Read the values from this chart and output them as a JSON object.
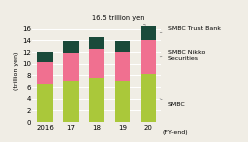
{
  "categories": [
    "2016",
    "17",
    "18",
    "19",
    "20"
  ],
  "smbc": [
    6.5,
    7.0,
    7.5,
    7.0,
    8.3
  ],
  "nikko": [
    3.8,
    4.8,
    5.0,
    5.0,
    5.7
  ],
  "trust": [
    1.7,
    2.0,
    2.0,
    1.8,
    2.5
  ],
  "colors": {
    "smbc": "#aac83a",
    "nikko": "#f07090",
    "trust": "#1a4a3a"
  },
  "bg_color": "#f0ede5",
  "grid_color": "#ffffff",
  "ylabel": "(trillion yen)",
  "xlabel": "(FY-end)",
  "ylim": [
    0,
    17.5
  ],
  "yticks": [
    0,
    2,
    4,
    6,
    8,
    10,
    12,
    14,
    16
  ],
  "annotation_text": "16.5 trillion yen",
  "legend_smbc": "SMBC",
  "legend_nikko": "SMBC Nikko\nSecurities",
  "legend_trust": "SMBC Trust Bank",
  "annotation_fontsize": 4.8,
  "legend_fontsize": 4.5,
  "tick_fontsize": 5.0,
  "ylabel_fontsize": 4.5,
  "xlabel_fontsize": 4.5,
  "bar_width": 0.6
}
